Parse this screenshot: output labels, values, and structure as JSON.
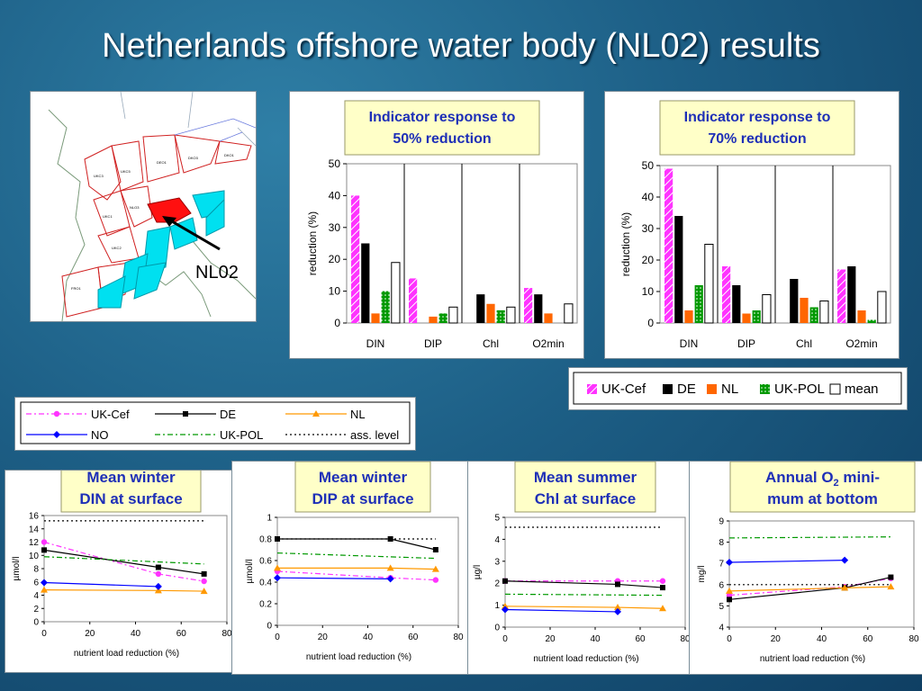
{
  "slide": {
    "title": "Netherlands offshore water body (NL02)  results"
  },
  "map": {
    "label": "NL02"
  },
  "legend_bar": {
    "items": [
      {
        "label": "UK-Cef",
        "color": "#ff33ff",
        "pattern": "hatch"
      },
      {
        "label": "DE",
        "color": "#000000",
        "pattern": "solid"
      },
      {
        "label": "NL",
        "color": "#ff6600",
        "pattern": "solid"
      },
      {
        "label": "UK-POL",
        "color": "#009900",
        "pattern": "dots"
      },
      {
        "label": "mean",
        "color": "#ffffff",
        "pattern": "outline"
      }
    ]
  },
  "legend_line": {
    "items": [
      {
        "label": "UK-Cef",
        "color": "#ff33ff",
        "style": "dashdot",
        "marker": "circle"
      },
      {
        "label": "DE",
        "color": "#000000",
        "style": "solid",
        "marker": "square"
      },
      {
        "label": "NL",
        "color": "#ff9900",
        "style": "solid",
        "marker": "triangle"
      },
      {
        "label": "NO",
        "color": "#0000ff",
        "style": "solid",
        "marker": "diamond"
      },
      {
        "label": "UK-POL",
        "color": "#009900",
        "style": "dashdot",
        "marker": "none"
      },
      {
        "label": "ass. level",
        "color": "#000000",
        "style": "dotted",
        "marker": "none"
      }
    ]
  },
  "chart_data": [
    {
      "id": "bar50",
      "type": "bar",
      "title": "Indicator response to 50% reduction",
      "ylabel": "reduction (%)",
      "ylim": [
        0,
        50
      ],
      "yticks": [
        0,
        10,
        20,
        30,
        40,
        50
      ],
      "categories": [
        "DIN",
        "DIP",
        "Chl",
        "O2min"
      ],
      "series": [
        {
          "name": "UK-Cef",
          "values": [
            40,
            14,
            null,
            11
          ]
        },
        {
          "name": "DE",
          "values": [
            25,
            null,
            9,
            9
          ]
        },
        {
          "name": "NL",
          "values": [
            3,
            2,
            6,
            3
          ]
        },
        {
          "name": "UK-POL",
          "values": [
            10,
            3,
            4,
            null
          ]
        },
        {
          "name": "mean",
          "values": [
            19,
            5,
            5,
            6
          ]
        }
      ]
    },
    {
      "id": "bar70",
      "type": "bar",
      "title": "Indicator response to 70% reduction",
      "ylabel": "reduction (%)",
      "ylim": [
        0,
        50
      ],
      "yticks": [
        0,
        10,
        20,
        30,
        40,
        50
      ],
      "categories": [
        "DIN",
        "DIP",
        "Chl",
        "O2min"
      ],
      "series": [
        {
          "name": "UK-Cef",
          "values": [
            49,
            18,
            null,
            17
          ]
        },
        {
          "name": "DE",
          "values": [
            34,
            12,
            14,
            18
          ]
        },
        {
          "name": "NL",
          "values": [
            4,
            3,
            8,
            4
          ]
        },
        {
          "name": "UK-POL",
          "values": [
            12,
            4,
            5,
            1
          ]
        },
        {
          "name": "mean",
          "values": [
            25,
            9,
            7,
            10
          ]
        }
      ]
    },
    {
      "id": "line_din",
      "type": "line",
      "title": "Mean winter DIN at surface",
      "xlabel": "nutrient load reduction (%)",
      "ylabel": "µmol/l",
      "xlim": [
        0,
        80
      ],
      "xticks": [
        0,
        20,
        40,
        60,
        80
      ],
      "ylim": [
        0,
        16
      ],
      "yticks": [
        0,
        2,
        4,
        6,
        8,
        10,
        12,
        14,
        16
      ],
      "series": [
        {
          "name": "UK-Cef",
          "x": [
            0,
            50,
            70
          ],
          "y": [
            12,
            7.2,
            6.1
          ]
        },
        {
          "name": "DE",
          "x": [
            0,
            50,
            70
          ],
          "y": [
            10.8,
            8.2,
            7.2
          ]
        },
        {
          "name": "NL",
          "x": [
            0,
            50,
            70
          ],
          "y": [
            4.8,
            4.7,
            4.6
          ]
        },
        {
          "name": "NO",
          "x": [
            0,
            50
          ],
          "y": [
            5.9,
            5.3
          ]
        },
        {
          "name": "UK-POL",
          "x": [
            0,
            70
          ],
          "y": [
            9.8,
            8.7
          ]
        },
        {
          "name": "ass. level",
          "x": [
            0,
            70
          ],
          "y": [
            15.2,
            15.2
          ]
        }
      ]
    },
    {
      "id": "line_dip",
      "type": "line",
      "title": "Mean winter DIP at surface",
      "xlabel": "nutrient load reduction (%)",
      "ylabel": "µmol/l",
      "xlim": [
        0,
        80
      ],
      "xticks": [
        0,
        20,
        40,
        60,
        80
      ],
      "ylim": [
        0,
        1
      ],
      "yticks": [
        0,
        0.2,
        0.4,
        0.6,
        0.8,
        1
      ],
      "series": [
        {
          "name": "UK-Cef",
          "x": [
            0,
            50,
            70
          ],
          "y": [
            0.5,
            0.44,
            0.42
          ]
        },
        {
          "name": "DE",
          "x": [
            0,
            50,
            70
          ],
          "y": [
            0.8,
            0.8,
            0.7
          ]
        },
        {
          "name": "NL",
          "x": [
            0,
            50,
            70
          ],
          "y": [
            0.53,
            0.53,
            0.52
          ]
        },
        {
          "name": "NO",
          "x": [
            0,
            50
          ],
          "y": [
            0.44,
            0.43
          ]
        },
        {
          "name": "UK-POL",
          "x": [
            0,
            70
          ],
          "y": [
            0.67,
            0.62
          ]
        },
        {
          "name": "ass. level",
          "x": [
            0,
            70
          ],
          "y": [
            0.8,
            0.8
          ]
        }
      ]
    },
    {
      "id": "line_chl",
      "type": "line",
      "title": "Mean summer Chl at surface",
      "xlabel": "nutrient load reduction (%)",
      "ylabel": "µg/l",
      "xlim": [
        0,
        80
      ],
      "xticks": [
        0,
        20,
        40,
        60,
        80
      ],
      "ylim": [
        0,
        5
      ],
      "yticks": [
        0,
        1,
        2,
        3,
        4,
        5
      ],
      "series": [
        {
          "name": "UK-Cef",
          "x": [
            0,
            50,
            70
          ],
          "y": [
            2.1,
            2.1,
            2.1
          ]
        },
        {
          "name": "DE",
          "x": [
            0,
            50,
            70
          ],
          "y": [
            2.1,
            1.95,
            1.8
          ]
        },
        {
          "name": "NL",
          "x": [
            0,
            50,
            70
          ],
          "y": [
            0.95,
            0.9,
            0.85
          ]
        },
        {
          "name": "NO",
          "x": [
            0,
            50
          ],
          "y": [
            0.8,
            0.7
          ]
        },
        {
          "name": "UK-POL",
          "x": [
            0,
            70
          ],
          "y": [
            1.5,
            1.45
          ]
        },
        {
          "name": "ass. level",
          "x": [
            0,
            70
          ],
          "y": [
            4.55,
            4.55
          ]
        }
      ]
    },
    {
      "id": "line_o2",
      "type": "line",
      "title_main": "Annual O",
      "title_sub": "2",
      "title_tail": " mini-",
      "title_line2": "mum at bottom",
      "xlabel": "nutrient load reduction (%)",
      "ylabel": "mg/l",
      "xlim": [
        0,
        80
      ],
      "xticks": [
        0,
        20,
        40,
        60,
        80
      ],
      "ylim": [
        4,
        9
      ],
      "yticks": [
        4,
        5,
        6,
        7,
        8,
        9
      ],
      "series": [
        {
          "name": "UK-Cef",
          "x": [
            0,
            50,
            70
          ],
          "y": [
            5.5,
            5.9,
            6.3
          ]
        },
        {
          "name": "DE",
          "x": [
            0,
            50,
            70
          ],
          "y": [
            5.3,
            5.85,
            6.35
          ]
        },
        {
          "name": "NL",
          "x": [
            0,
            50,
            70
          ],
          "y": [
            5.7,
            5.85,
            5.9
          ]
        },
        {
          "name": "NO",
          "x": [
            0,
            50
          ],
          "y": [
            7.05,
            7.15
          ]
        },
        {
          "name": "UK-POL",
          "x": [
            0,
            70
          ],
          "y": [
            8.2,
            8.25
          ]
        },
        {
          "name": "ass. level",
          "x": [
            0,
            70
          ],
          "y": [
            6.0,
            6.0
          ]
        }
      ]
    }
  ]
}
